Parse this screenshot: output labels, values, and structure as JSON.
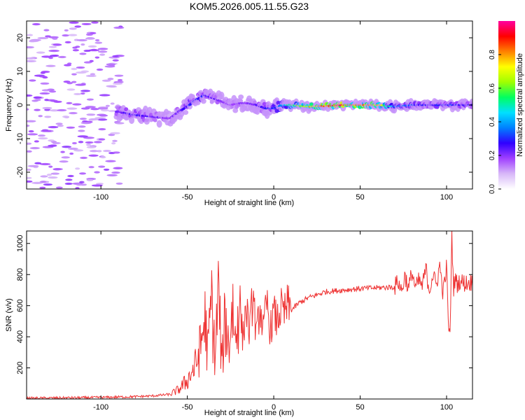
{
  "chart_data": [
    {
      "type": "heatmap",
      "title": "KOM5.2026.005.11.55.G23",
      "xlabel": "Height of straight line (km)",
      "ylabel": "Frequency (Hz)",
      "xlim": [
        -143,
        115
      ],
      "ylim": [
        -25,
        25
      ],
      "xticks": [
        -100,
        -50,
        0,
        50,
        100
      ],
      "xtick_labels": [
        "-100",
        "-50",
        "0",
        "50",
        "100"
      ],
      "yticks": [
        -20,
        -10,
        0,
        10,
        20
      ],
      "ytick_labels": [
        "-20",
        "-10",
        "0",
        "10",
        "20"
      ],
      "colorbar": {
        "label": "Normalized spectral amplitude",
        "range": [
          0,
          1
        ],
        "ticks": [
          0.0,
          0.2,
          0.4,
          0.6,
          0.8
        ],
        "tick_labels": [
          "0.0",
          "0.2",
          "0.4",
          "0.6",
          "0.8"
        ],
        "colors": [
          "#ffffff",
          "#d8b8f8",
          "#a040ff",
          "#3000ff",
          "#0080ff",
          "#00e0ff",
          "#00ff60",
          "#a0ff00",
          "#ffff00",
          "#ff8000",
          "#ff0000",
          "#ff00a0"
        ]
      },
      "ridge": {
        "height_km": [
          -90,
          -80,
          -70,
          -60,
          -55,
          -50,
          -45,
          -40,
          -35,
          -30,
          -25,
          -20,
          -15,
          -10,
          -5,
          0,
          5,
          10,
          20,
          30,
          40,
          50,
          60,
          70,
          80,
          90,
          100,
          110,
          115
        ],
        "frequency_hz": [
          -2,
          -3,
          -3.5,
          -4,
          -2,
          -0.5,
          1.5,
          3,
          2,
          1,
          0,
          0.5,
          0.5,
          0,
          -1,
          -1,
          0,
          0,
          -0.5,
          -0.3,
          0,
          0,
          0,
          -0.5,
          0,
          0,
          0,
          0,
          0
        ],
        "amplitude": [
          0.25,
          0.3,
          0.25,
          0.2,
          0.25,
          0.3,
          0.35,
          0.3,
          0.25,
          0.22,
          0.2,
          0.22,
          0.22,
          0.25,
          0.3,
          0.35,
          0.45,
          0.6,
          0.8,
          0.95,
          1.0,
          0.9,
          0.85,
          0.4,
          0.35,
          0.3,
          0.35,
          0.3,
          0.3
        ]
      }
    },
    {
      "type": "line",
      "xlabel": "Height of straight line (km)",
      "ylabel": "SNR (v/v)",
      "xlim": [
        -143,
        115
      ],
      "ylim": [
        0,
        1080
      ],
      "xticks": [
        -100,
        -50,
        0,
        50,
        100
      ],
      "xtick_labels": [
        "-100",
        "-50",
        "0",
        "50",
        "100"
      ],
      "yticks": [
        200,
        400,
        600,
        800,
        1000
      ],
      "ytick_labels": [
        "200",
        "400",
        "600",
        "800",
        "1000"
      ],
      "color": "#ee3333",
      "series": [
        {
          "name": "SNR",
          "x": [
            -143,
            -100,
            -80,
            -70,
            -60,
            -55,
            -50,
            -45,
            -42,
            -40,
            -38,
            -36,
            -34,
            -32,
            -30,
            -28,
            -26,
            -24,
            -22,
            -20,
            -18,
            -16,
            -14,
            -12,
            -10,
            -8,
            -6,
            -4,
            -2,
            0,
            2,
            4,
            6,
            8,
            10,
            15,
            20,
            25,
            30,
            40,
            50,
            60,
            70,
            72,
            74,
            76,
            78,
            80,
            82,
            84,
            86,
            88,
            90,
            92,
            94,
            96,
            98,
            100,
            101,
            102,
            103,
            104,
            105,
            106,
            108,
            110,
            115
          ],
          "y": [
            5,
            10,
            15,
            20,
            30,
            60,
            120,
            220,
            350,
            520,
            300,
            650,
            250,
            700,
            200,
            550,
            320,
            620,
            350,
            700,
            380,
            600,
            420,
            680,
            400,
            600,
            430,
            620,
            440,
            550,
            500,
            580,
            540,
            600,
            570,
            620,
            650,
            670,
            690,
            700,
            710,
            715,
            720,
            760,
            690,
            800,
            700,
            820,
            710,
            760,
            720,
            840,
            700,
            800,
            730,
            860,
            680,
            850,
            500,
            380,
            1080,
            700,
            780,
            740,
            760,
            745,
            750
          ]
        }
      ]
    }
  ]
}
